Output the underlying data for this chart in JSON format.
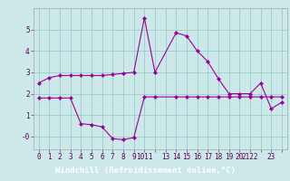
{
  "xlabel": "Windchill (Refroidissement éolien,°C)",
  "background_color": "#cce8e8",
  "line_color": "#990099",
  "hours": [
    0,
    1,
    2,
    3,
    4,
    5,
    6,
    7,
    8,
    9,
    10,
    11,
    13,
    14,
    15,
    16,
    17,
    18,
    19,
    20,
    21,
    22,
    23
  ],
  "temp1": [
    2.5,
    2.75,
    2.85,
    2.85,
    2.85,
    2.85,
    2.85,
    2.9,
    2.95,
    3.0,
    5.55,
    3.0,
    4.85,
    4.7,
    4.0,
    3.5,
    2.7,
    2.0,
    2.0,
    2.0,
    2.5,
    1.3,
    1.6
  ],
  "temp2": [
    1.8,
    1.8,
    1.8,
    1.8,
    0.6,
    0.55,
    0.45,
    -0.1,
    -0.15,
    -0.05,
    1.85,
    1.85,
    1.85,
    1.85,
    1.85,
    1.85,
    1.85,
    1.85,
    1.85,
    1.85,
    1.85,
    1.85,
    1.85
  ],
  "ylim": [
    -0.6,
    6.0
  ],
  "yticks": [
    0,
    1,
    2,
    3,
    4,
    5
  ],
  "ytick_labels": [
    "-0",
    "1",
    "2",
    "3",
    "4",
    "5"
  ],
  "grid_color": "#99cccc",
  "xlabel_bg": "#882299",
  "xlabel_fg": "#ffffff",
  "xlabel_fontsize": 6.5,
  "tick_fontsize": 5.5,
  "xticks_all": [
    0,
    1,
    2,
    3,
    4,
    5,
    6,
    7,
    8,
    9,
    10,
    11,
    12,
    13,
    14,
    15,
    16,
    17,
    18,
    19,
    20,
    21,
    22,
    23
  ],
  "xtick_labels": [
    "0",
    "1",
    "2",
    "3",
    "4",
    "5",
    "6",
    "7",
    "8",
    "9",
    "1011",
    "",
    "13",
    "14",
    "15",
    "16",
    "17",
    "18",
    "19",
    "20",
    "2122",
    "",
    "23",
    ""
  ],
  "xlim": [
    -0.5,
    23.5
  ]
}
